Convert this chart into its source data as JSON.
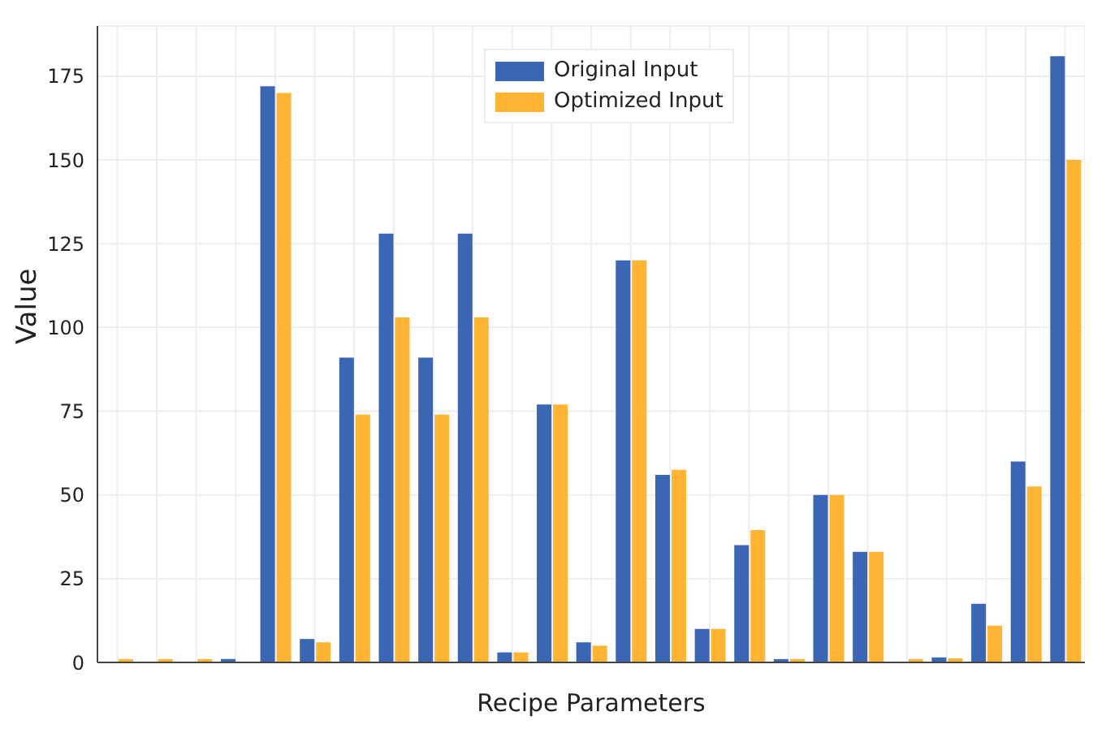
{
  "chart_data": {
    "type": "bar",
    "xlabel": "Recipe Parameters",
    "ylabel": "Value",
    "categories": [
      null,
      null,
      null,
      null,
      null,
      null,
      null,
      null,
      null,
      null,
      null,
      null,
      null,
      null,
      null,
      null,
      null,
      null,
      null,
      null,
      null,
      null,
      null,
      null,
      null
    ],
    "series": [
      {
        "name": "Original Input",
        "color": "#3a66b3",
        "values": [
          0,
          0,
          0,
          1,
          172,
          7,
          91,
          128,
          91,
          128,
          3,
          77,
          6,
          120,
          56,
          10,
          35,
          1,
          50,
          33,
          0,
          1.5,
          17.5,
          60,
          181
        ]
      },
      {
        "name": "Optimized Input",
        "color": "#ffb533",
        "values": [
          1,
          1,
          1,
          0,
          170,
          6,
          74,
          103,
          74,
          103,
          3,
          77,
          5,
          120,
          57.5,
          10,
          39.5,
          1,
          50,
          33,
          1,
          1.2,
          11,
          52.5,
          150
        ]
      }
    ],
    "ylim": [
      0,
      190
    ],
    "yticks": [
      0,
      25,
      50,
      75,
      100,
      125,
      150,
      175
    ],
    "grid": true,
    "legend": "top"
  }
}
